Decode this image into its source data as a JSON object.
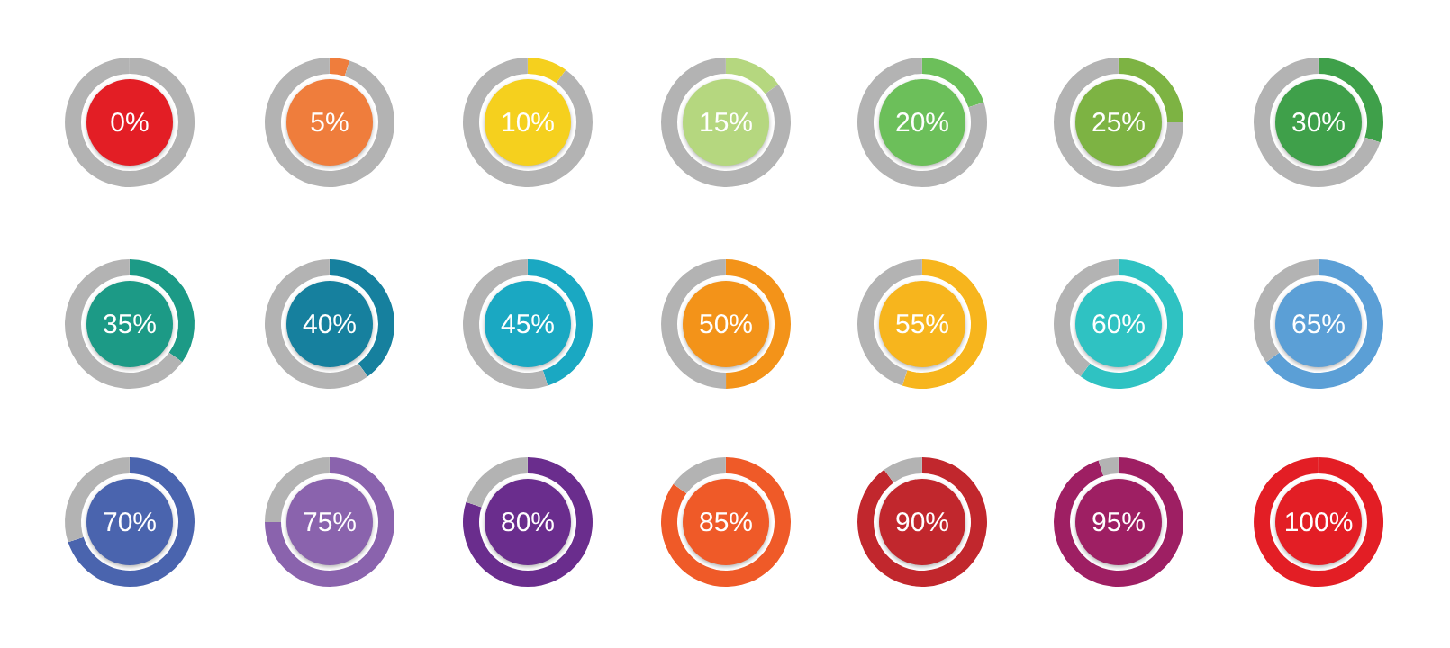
{
  "chart_data": [
    {
      "type": "donut",
      "categories": [
        null,
        null
      ],
      "values": [
        0,
        100
      ],
      "colors": [
        "#e31e25",
        "#b3b3b3"
      ],
      "annotations": [
        "0%"
      ]
    },
    {
      "type": "donut",
      "categories": [
        null,
        null
      ],
      "values": [
        5,
        95
      ],
      "colors": [
        "#ef7d3c",
        "#b3b3b3"
      ],
      "annotations": [
        "5%"
      ]
    },
    {
      "type": "donut",
      "categories": [
        null,
        null
      ],
      "values": [
        10,
        90
      ],
      "colors": [
        "#f5d01e",
        "#b3b3b3"
      ],
      "annotations": [
        "10%"
      ]
    },
    {
      "type": "donut",
      "categories": [
        null,
        null
      ],
      "values": [
        15,
        85
      ],
      "colors": [
        "#b5d77f",
        "#b3b3b3"
      ],
      "annotations": [
        "15%"
      ]
    },
    {
      "type": "donut",
      "categories": [
        null,
        null
      ],
      "values": [
        20,
        80
      ],
      "colors": [
        "#6cbf5a",
        "#b3b3b3"
      ],
      "annotations": [
        "20%"
      ]
    },
    {
      "type": "donut",
      "categories": [
        null,
        null
      ],
      "values": [
        25,
        75
      ],
      "colors": [
        "#7db343",
        "#b3b3b3"
      ],
      "annotations": [
        "25%"
      ]
    },
    {
      "type": "donut",
      "categories": [
        null,
        null
      ],
      "values": [
        30,
        70
      ],
      "colors": [
        "#3fa04a",
        "#b3b3b3"
      ],
      "annotations": [
        "30%"
      ]
    },
    {
      "type": "donut",
      "categories": [
        null,
        null
      ],
      "values": [
        35,
        65
      ],
      "colors": [
        "#1c9a86",
        "#b3b3b3"
      ],
      "annotations": [
        "35%"
      ]
    },
    {
      "type": "donut",
      "categories": [
        null,
        null
      ],
      "values": [
        40,
        60
      ],
      "colors": [
        "#16809e",
        "#b3b3b3"
      ],
      "annotations": [
        "40%"
      ]
    },
    {
      "type": "donut",
      "categories": [
        null,
        null
      ],
      "values": [
        45,
        55
      ],
      "colors": [
        "#1aa8c2",
        "#b3b3b3"
      ],
      "annotations": [
        "45%"
      ]
    },
    {
      "type": "donut",
      "categories": [
        null,
        null
      ],
      "values": [
        50,
        50
      ],
      "colors": [
        "#f39319",
        "#b3b3b3"
      ],
      "annotations": [
        "50%"
      ]
    },
    {
      "type": "donut",
      "categories": [
        null,
        null
      ],
      "values": [
        55,
        45
      ],
      "colors": [
        "#f7b51d",
        "#b3b3b3"
      ],
      "annotations": [
        "55%"
      ]
    },
    {
      "type": "donut",
      "categories": [
        null,
        null
      ],
      "values": [
        60,
        40
      ],
      "colors": [
        "#2fc2c2",
        "#b3b3b3"
      ],
      "annotations": [
        "60%"
      ]
    },
    {
      "type": "donut",
      "categories": [
        null,
        null
      ],
      "values": [
        65,
        35
      ],
      "colors": [
        "#5b9fd6",
        "#b3b3b3"
      ],
      "annotations": [
        "65%"
      ]
    },
    {
      "type": "donut",
      "categories": [
        null,
        null
      ],
      "values": [
        70,
        30
      ],
      "colors": [
        "#4a64ae",
        "#b3b3b3"
      ],
      "annotations": [
        "70%"
      ]
    },
    {
      "type": "donut",
      "categories": [
        null,
        null
      ],
      "values": [
        75,
        25
      ],
      "colors": [
        "#8a63ad",
        "#b3b3b3"
      ],
      "annotations": [
        "75%"
      ]
    },
    {
      "type": "donut",
      "categories": [
        null,
        null
      ],
      "values": [
        80,
        20
      ],
      "colors": [
        "#6a2d8d",
        "#b3b3b3"
      ],
      "annotations": [
        "80%"
      ]
    },
    {
      "type": "donut",
      "categories": [
        null,
        null
      ],
      "values": [
        85,
        15
      ],
      "colors": [
        "#ef5a28",
        "#b3b3b3"
      ],
      "annotations": [
        "85%"
      ]
    },
    {
      "type": "donut",
      "categories": [
        null,
        null
      ],
      "values": [
        90,
        10
      ],
      "colors": [
        "#c1272d",
        "#b3b3b3"
      ],
      "annotations": [
        "90%"
      ]
    },
    {
      "type": "donut",
      "categories": [
        null,
        null
      ],
      "values": [
        95,
        5
      ],
      "colors": [
        "#9e1f63",
        "#b3b3b3"
      ],
      "annotations": [
        "95%"
      ]
    },
    {
      "type": "donut",
      "categories": [
        null,
        null
      ],
      "values": [
        100,
        0
      ],
      "colors": [
        "#e31e25",
        "#b3b3b3"
      ],
      "annotations": [
        "100%"
      ]
    }
  ]
}
